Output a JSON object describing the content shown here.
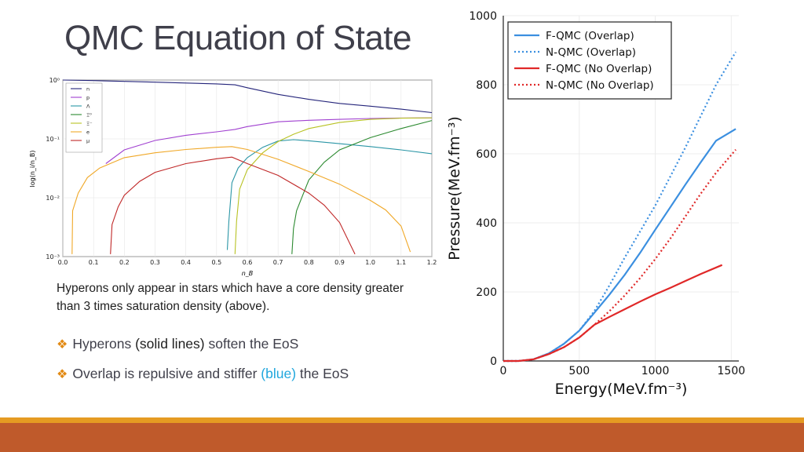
{
  "slide": {
    "title": "QMC Equation of State",
    "caption": "Hyperons only appear in stars which have a core density greater than 3 times saturation density (above).",
    "bullets": [
      {
        "before": "Hyperons ",
        "highlight": "(solid lines)",
        "after": " soften the EoS",
        "highlight_color": "#1f1f1f"
      },
      {
        "before": "Overlap is repulsive and stiffer ",
        "highlight": "(blue)",
        "after": " the EoS",
        "highlight_color": "#21a7dd"
      }
    ],
    "bullet_icon": "diamond-cluster-icon",
    "colors": {
      "title": "#3f3f4a",
      "accent_bar": "#e59b22",
      "footer": "#bf5a2b"
    }
  },
  "chart_data": [
    {
      "type": "line",
      "xlabel": "n_B",
      "ylabel": "log(n_i/n_B)",
      "xlim": [
        0.0,
        1.2
      ],
      "ylim": [
        0.001,
        1
      ],
      "yscale": "log",
      "x_ticks": [
        "0.0",
        "0.1",
        "0.2",
        "0.3",
        "0.4",
        "0.5",
        "0.6",
        "0.7",
        "0.8",
        "0.9",
        "1.0",
        "1.1",
        "1.2"
      ],
      "y_ticks": [
        "10⁰",
        "10⁻¹",
        "10⁻²",
        "10⁻³"
      ],
      "grid": true,
      "legend": "top-left",
      "series": [
        {
          "name": "n",
          "color": "#24247a",
          "points": [
            [
              0.0,
              1.0
            ],
            [
              0.1,
              0.98
            ],
            [
              0.2,
              0.95
            ],
            [
              0.3,
              0.92
            ],
            [
              0.4,
              0.89
            ],
            [
              0.5,
              0.86
            ],
            [
              0.56,
              0.83
            ],
            [
              0.6,
              0.74
            ],
            [
              0.7,
              0.57
            ],
            [
              0.8,
              0.47
            ],
            [
              0.9,
              0.4
            ],
            [
              1.0,
              0.36
            ],
            [
              1.1,
              0.32
            ],
            [
              1.2,
              0.28
            ]
          ]
        },
        {
          "name": "p",
          "color": "#a040d0",
          "points": [
            [
              0.14,
              0.038
            ],
            [
              0.2,
              0.065
            ],
            [
              0.3,
              0.094
            ],
            [
              0.4,
              0.115
            ],
            [
              0.5,
              0.132
            ],
            [
              0.56,
              0.145
            ],
            [
              0.6,
              0.162
            ],
            [
              0.7,
              0.195
            ],
            [
              0.8,
              0.207
            ],
            [
              0.9,
              0.215
            ],
            [
              1.0,
              0.222
            ],
            [
              1.1,
              0.226
            ],
            [
              1.2,
              0.228
            ]
          ]
        },
        {
          "name": "Λ",
          "color": "#2b96a6",
          "points": [
            [
              0.535,
              0.0013
            ],
            [
              0.54,
              0.004
            ],
            [
              0.55,
              0.018
            ],
            [
              0.57,
              0.032
            ],
            [
              0.6,
              0.048
            ],
            [
              0.65,
              0.072
            ],
            [
              0.7,
              0.092
            ],
            [
              0.75,
              0.097
            ],
            [
              0.8,
              0.093
            ],
            [
              0.9,
              0.083
            ],
            [
              1.0,
              0.074
            ],
            [
              1.1,
              0.065
            ],
            [
              1.2,
              0.056
            ]
          ]
        },
        {
          "name": "Ξ⁰",
          "color": "#2c8a30",
          "points": [
            [
              0.745,
              0.0011
            ],
            [
              0.75,
              0.003
            ],
            [
              0.76,
              0.006
            ],
            [
              0.78,
              0.011
            ],
            [
              0.8,
              0.02
            ],
            [
              0.85,
              0.04
            ],
            [
              0.9,
              0.065
            ],
            [
              1.0,
              0.105
            ],
            [
              1.1,
              0.15
            ],
            [
              1.2,
              0.205
            ]
          ]
        },
        {
          "name": "Ξ⁻",
          "color": "#b8c224",
          "points": [
            [
              0.56,
              0.0011
            ],
            [
              0.565,
              0.004
            ],
            [
              0.575,
              0.014
            ],
            [
              0.6,
              0.03
            ],
            [
              0.65,
              0.058
            ],
            [
              0.7,
              0.09
            ],
            [
              0.75,
              0.12
            ],
            [
              0.8,
              0.15
            ],
            [
              0.9,
              0.19
            ],
            [
              1.0,
              0.215
            ],
            [
              1.1,
              0.225
            ],
            [
              1.2,
              0.228
            ]
          ]
        },
        {
          "name": "e",
          "color": "#f0a828",
          "points": [
            [
              0.03,
              0.0011
            ],
            [
              0.032,
              0.006
            ],
            [
              0.05,
              0.012
            ],
            [
              0.08,
              0.022
            ],
            [
              0.12,
              0.032
            ],
            [
              0.2,
              0.048
            ],
            [
              0.3,
              0.058
            ],
            [
              0.4,
              0.066
            ],
            [
              0.5,
              0.072
            ],
            [
              0.55,
              0.074
            ],
            [
              0.6,
              0.066
            ],
            [
              0.7,
              0.045
            ],
            [
              0.8,
              0.028
            ],
            [
              0.9,
              0.017
            ],
            [
              1.0,
              0.009
            ],
            [
              1.05,
              0.0062
            ],
            [
              1.1,
              0.0033
            ],
            [
              1.13,
              0.0012
            ]
          ]
        },
        {
          "name": "μ",
          "color": "#c02828",
          "points": [
            [
              0.155,
              0.0011
            ],
            [
              0.16,
              0.0035
            ],
            [
              0.18,
              0.007
            ],
            [
              0.2,
              0.011
            ],
            [
              0.25,
              0.019
            ],
            [
              0.3,
              0.027
            ],
            [
              0.4,
              0.038
            ],
            [
              0.5,
              0.046
            ],
            [
              0.55,
              0.049
            ],
            [
              0.6,
              0.038
            ],
            [
              0.7,
              0.024
            ],
            [
              0.8,
              0.012
            ],
            [
              0.85,
              0.0075
            ],
            [
              0.9,
              0.0038
            ],
            [
              0.95,
              0.0011
            ]
          ]
        }
      ]
    },
    {
      "type": "line",
      "xlabel": "Energy(MeV.fm⁻³)",
      "ylabel": "Pressure(MeV.fm⁻³)",
      "xlim": [
        0,
        1550
      ],
      "ylim": [
        0,
        1000
      ],
      "x_ticks": [
        "0",
        "500",
        "1000",
        "1500"
      ],
      "y_ticks": [
        "0",
        "200",
        "400",
        "600",
        "800",
        "1000"
      ],
      "grid": true,
      "legend": "top-left",
      "series": [
        {
          "name": "F-QMC (Overlap)",
          "color": "#3b8fe0",
          "style": "solid",
          "points": [
            [
              0,
              0
            ],
            [
              100,
              0
            ],
            [
              200,
              5
            ],
            [
              300,
              22
            ],
            [
              400,
              50
            ],
            [
              500,
              88
            ],
            [
              600,
              140
            ],
            [
              700,
              193
            ],
            [
              800,
              250
            ],
            [
              900,
              313
            ],
            [
              1000,
              380
            ],
            [
              1100,
              446
            ],
            [
              1200,
              512
            ],
            [
              1300,
              576
            ],
            [
              1400,
              638
            ],
            [
              1530,
              672
            ]
          ]
        },
        {
          "name": "N-QMC (Overlap)",
          "color": "#3b8fe0",
          "style": "dotted",
          "points": [
            [
              0,
              0
            ],
            [
              100,
              0
            ],
            [
              200,
              5
            ],
            [
              300,
              22
            ],
            [
              400,
              50
            ],
            [
              500,
              88
            ],
            [
              600,
              145
            ],
            [
              700,
              220
            ],
            [
              800,
              300
            ],
            [
              900,
              375
            ],
            [
              1000,
              450
            ],
            [
              1100,
              535
            ],
            [
              1200,
              620
            ],
            [
              1300,
              710
            ],
            [
              1400,
              800
            ],
            [
              1530,
              895
            ]
          ]
        },
        {
          "name": "F-QMC (No Overlap)",
          "color": "#e02828",
          "style": "solid",
          "points": [
            [
              0,
              0
            ],
            [
              100,
              0
            ],
            [
              200,
              5
            ],
            [
              300,
              20
            ],
            [
              400,
              40
            ],
            [
              500,
              68
            ],
            [
              600,
              105
            ],
            [
              700,
              128
            ],
            [
              800,
              150
            ],
            [
              900,
              172
            ],
            [
              1000,
              193
            ],
            [
              1100,
              212
            ],
            [
              1200,
              232
            ],
            [
              1300,
              252
            ],
            [
              1440,
              278
            ]
          ]
        },
        {
          "name": "N-QMC (No Overlap)",
          "color": "#e02828",
          "style": "dotted",
          "points": [
            [
              0,
              0
            ],
            [
              100,
              0
            ],
            [
              200,
              5
            ],
            [
              300,
              20
            ],
            [
              400,
              40
            ],
            [
              500,
              68
            ],
            [
              600,
              105
            ],
            [
              700,
              145
            ],
            [
              800,
              190
            ],
            [
              900,
              240
            ],
            [
              1000,
              295
            ],
            [
              1100,
              355
            ],
            [
              1200,
              420
            ],
            [
              1300,
              485
            ],
            [
              1400,
              545
            ],
            [
              1530,
              612
            ]
          ]
        }
      ]
    }
  ]
}
